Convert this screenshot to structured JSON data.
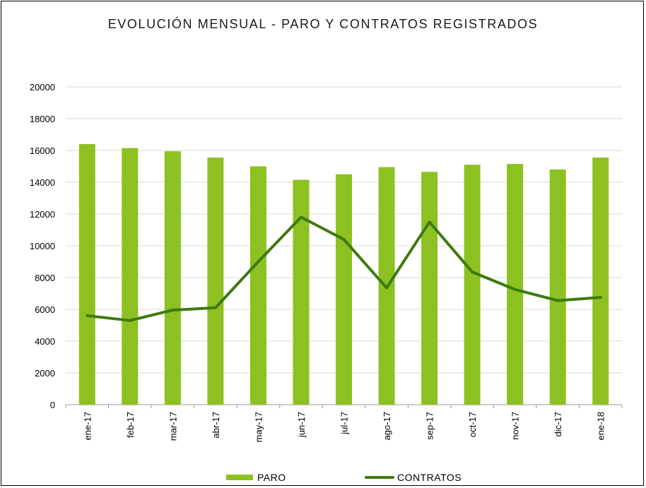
{
  "chart_data": {
    "type": "bar+line",
    "title": "EVOLUCIÓN MENSUAL - PARO Y CONTRATOS REGISTRADOS",
    "categories": [
      "ene-17",
      "feb-17",
      "mar-17",
      "abr-17",
      "may-17",
      "jun-17",
      "jul-17",
      "ago-17",
      "sep-17",
      "oct-17",
      "nov-17",
      "dic-17",
      "ene-18"
    ],
    "series": [
      {
        "name": "PARO",
        "type": "bar",
        "color": "#8cc121",
        "values": [
          16400,
          16150,
          15950,
          15550,
          15000,
          14150,
          14500,
          14950,
          14650,
          15100,
          15150,
          14800,
          15550
        ]
      },
      {
        "name": "CONTRATOS",
        "type": "line",
        "color": "#3d7a0e",
        "values": [
          5600,
          5300,
          5950,
          6100,
          9000,
          11800,
          10400,
          7350,
          11500,
          8350,
          7250,
          6550,
          6750
        ]
      }
    ],
    "ylim": [
      0,
      20000
    ],
    "yticks": [
      "0",
      "2000",
      "4000",
      "6000",
      "8000",
      "10000",
      "12000",
      "14000",
      "16000",
      "18000",
      "20000"
    ],
    "grid": true,
    "legend": "bottom-center"
  }
}
